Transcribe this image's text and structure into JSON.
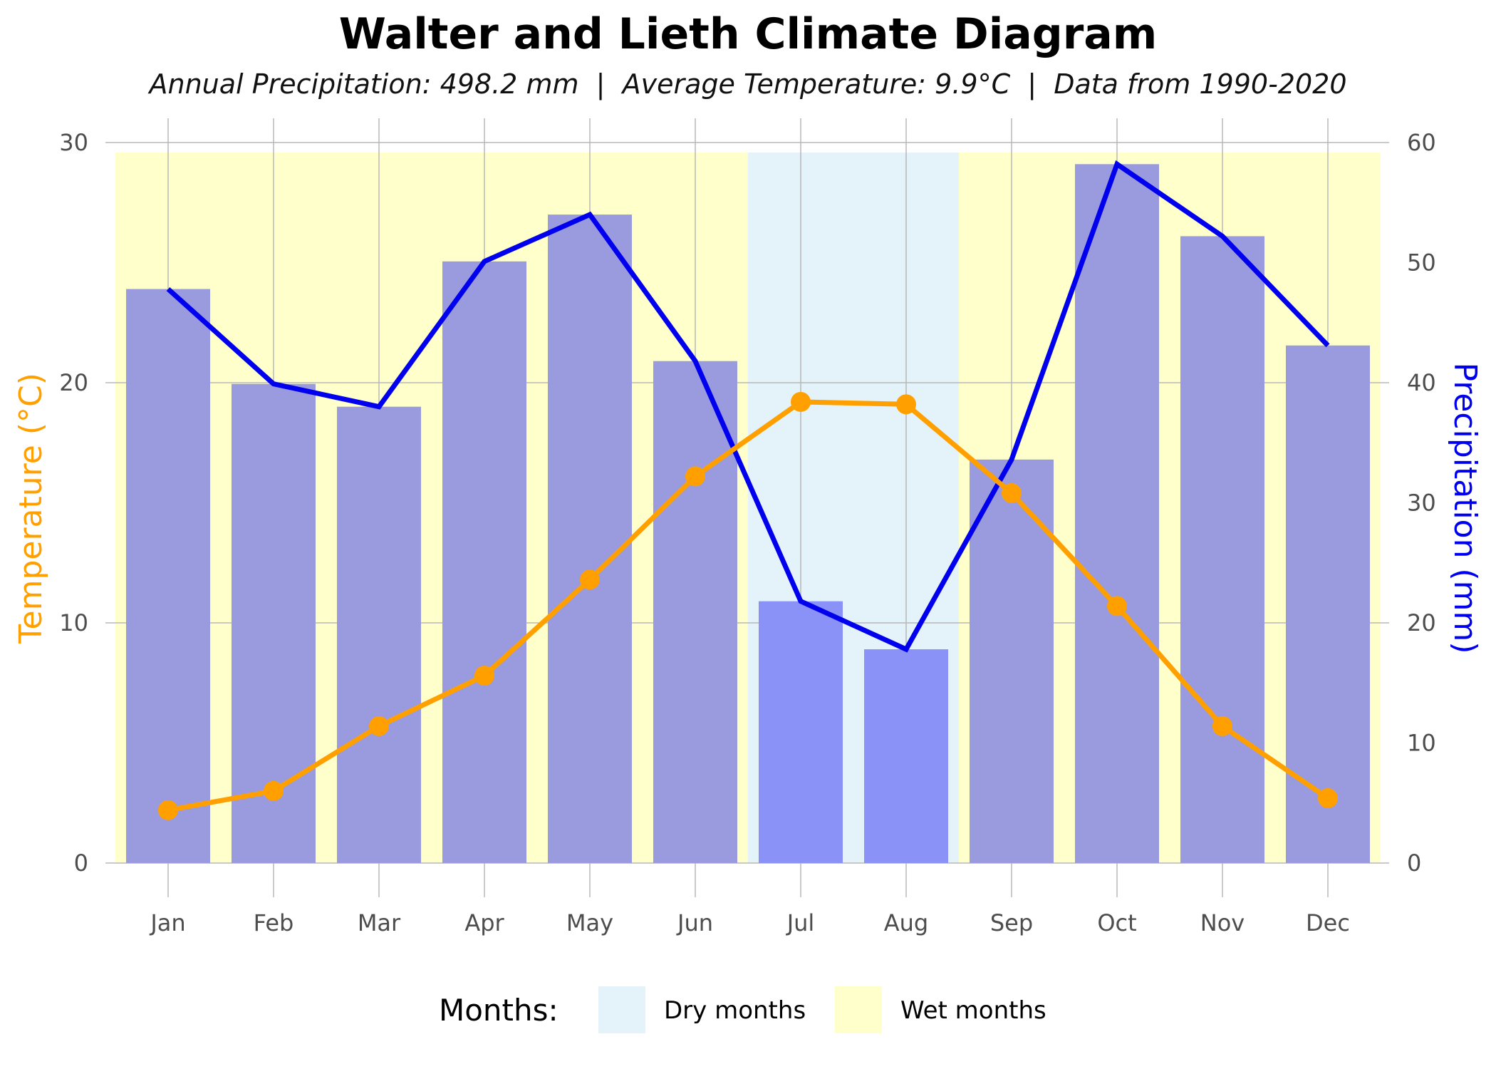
{
  "chart_data": {
    "type": "bar",
    "title": "Walter and Lieth Climate Diagram",
    "subtitle": "Annual Precipitation: 498.2 mm  |  Average Temperature: 9.9°C  |  Data from 1990-2020",
    "categories": [
      "Jan",
      "Feb",
      "Mar",
      "Apr",
      "May",
      "Jun",
      "Jul",
      "Aug",
      "Sep",
      "Oct",
      "Nov",
      "Dec"
    ],
    "series": [
      {
        "name": "Precipitation",
        "type": "bar+line",
        "axis": "right",
        "values": [
          47.8,
          39.9,
          38.0,
          50.1,
          54.0,
          41.8,
          21.8,
          17.8,
          33.6,
          58.2,
          52.2,
          43.1
        ],
        "bar_color": "#8a92e8",
        "line_color": "#0000ee"
      },
      {
        "name": "Temperature",
        "type": "line+markers",
        "axis": "left",
        "values": [
          2.2,
          3.0,
          5.7,
          7.8,
          11.8,
          16.1,
          19.2,
          19.1,
          15.4,
          10.7,
          5.7,
          2.7
        ],
        "color": "#ffa000"
      }
    ],
    "month_class": [
      "wet",
      "wet",
      "wet",
      "wet",
      "wet",
      "wet",
      "dry",
      "dry",
      "wet",
      "wet",
      "wet",
      "wet"
    ],
    "ylabel": "Temperature (°C)",
    "ylabel_right": "Precipitation (mm)",
    "ylim": [
      0,
      30
    ],
    "ylim_right": [
      0,
      60
    ],
    "yticks": [
      "0",
      "10",
      "20",
      "30"
    ],
    "yticks_right": [
      "0",
      "10",
      "20",
      "30",
      "40",
      "50",
      "60"
    ],
    "grid": true,
    "legend": {
      "title": "Months:",
      "position": "bottom",
      "items": [
        {
          "label": "Dry months",
          "color": "#e4f2f9"
        },
        {
          "label": "Wet months",
          "color": "#ffffcc"
        }
      ]
    },
    "colors": {
      "temperature_label": "#ffa000",
      "precip_label": "#0000ee",
      "wet_bg": "#ffffcc",
      "dry_bg": "#e4f2f9",
      "bar_wet": "#9a9ade",
      "bar_dry": "#8a92f8",
      "grid": "#b8b8b8"
    }
  }
}
